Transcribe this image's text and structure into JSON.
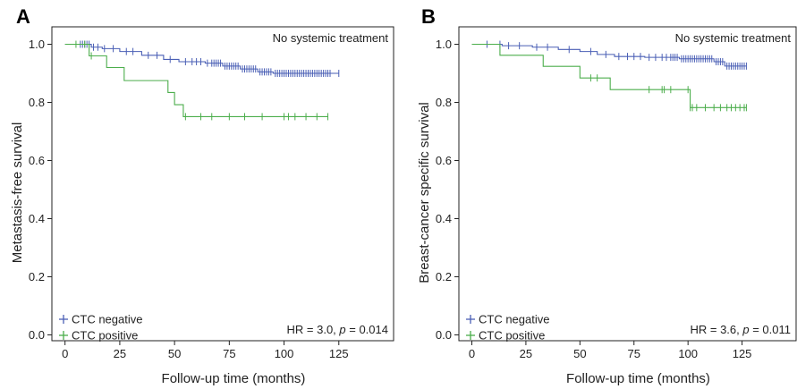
{
  "chart_data": [
    {
      "type": "line",
      "panel_letter": "A",
      "title": "No systemic treatment",
      "xlabel": "Follow-up time (months)",
      "ylabel": "Metastasis-free survival",
      "xlim": [
        -6,
        150
      ],
      "ylim": [
        -0.02,
        1.06
      ],
      "xticks": [
        0,
        25,
        50,
        75,
        100,
        125
      ],
      "yticks": [
        0.0,
        0.2,
        0.4,
        0.6,
        0.8,
        1.0
      ],
      "ytick_labels": [
        "0.0",
        "0.2",
        "0.4",
        "0.6",
        "0.8",
        "1.0"
      ],
      "annotation": {
        "hr_prefix": "HR = 3.0, ",
        "p_symbol": "p",
        "p_suffix": " = 0.014"
      },
      "legend_placement": "bottom-left",
      "grid": false,
      "series": [
        {
          "name": "CTC negative",
          "color": "#4a5fb5",
          "steps": [
            [
              0,
              1.0
            ],
            [
              12,
              0.99
            ],
            [
              17,
              0.985
            ],
            [
              25,
              0.975
            ],
            [
              35,
              0.962
            ],
            [
              45,
              0.948
            ],
            [
              52,
              0.94
            ],
            [
              64,
              0.935
            ],
            [
              72,
              0.925
            ],
            [
              80,
              0.915
            ],
            [
              88,
              0.905
            ],
            [
              95,
              0.9
            ],
            [
              125,
              0.9
            ]
          ],
          "censor_times": [
            7,
            8,
            9,
            10,
            11,
            13,
            15,
            18,
            22,
            28,
            31,
            38,
            42,
            48,
            55,
            58,
            60,
            62,
            65,
            67,
            68,
            69,
            70,
            71,
            73,
            74,
            75,
            76,
            77,
            78,
            79,
            81,
            82,
            83,
            84,
            85,
            86,
            87,
            89,
            90,
            91,
            92,
            93,
            94,
            96,
            97,
            98,
            99,
            100,
            101,
            102,
            103,
            104,
            105,
            106,
            107,
            108,
            109,
            110,
            111,
            112,
            113,
            114,
            115,
            116,
            117,
            118,
            119,
            120,
            121,
            125
          ]
        },
        {
          "name": "CTC positive",
          "color": "#4cae4c",
          "steps": [
            [
              0,
              1.0
            ],
            [
              11,
              0.96
            ],
            [
              19,
              0.92
            ],
            [
              27,
              0.875
            ],
            [
              47,
              0.834
            ],
            [
              50,
              0.792
            ],
            [
              54,
              0.751
            ],
            [
              120,
              0.751
            ]
          ],
          "censor_times": [
            5,
            9,
            12,
            55,
            62,
            67,
            75,
            82,
            90,
            100,
            102,
            105,
            110,
            115,
            120
          ]
        }
      ]
    },
    {
      "type": "line",
      "panel_letter": "B",
      "title": "No systemic treatment",
      "xlabel": "Follow-up time (months)",
      "ylabel": "Breast-cancer specific survival",
      "xlim": [
        -6,
        150
      ],
      "ylim": [
        -0.02,
        1.06
      ],
      "xticks": [
        0,
        25,
        50,
        75,
        100,
        125
      ],
      "yticks": [
        0.0,
        0.2,
        0.4,
        0.6,
        0.8,
        1.0
      ],
      "ytick_labels": [
        "0.0",
        "0.2",
        "0.4",
        "0.6",
        "0.8",
        "1.0"
      ],
      "annotation": {
        "hr_prefix": "HR = 3.6, ",
        "p_symbol": "p",
        "p_suffix": " = 0.011"
      },
      "legend_placement": "bottom-left",
      "grid": false,
      "series": [
        {
          "name": "CTC negative",
          "color": "#4a5fb5",
          "steps": [
            [
              0,
              1.0
            ],
            [
              14,
              0.995
            ],
            [
              28,
              0.99
            ],
            [
              40,
              0.982
            ],
            [
              50,
              0.975
            ],
            [
              58,
              0.965
            ],
            [
              66,
              0.958
            ],
            [
              80,
              0.955
            ],
            [
              96,
              0.95
            ],
            [
              112,
              0.94
            ],
            [
              117,
              0.925
            ],
            [
              127,
              0.925
            ]
          ],
          "censor_times": [
            7,
            13,
            17,
            22,
            30,
            35,
            45,
            55,
            62,
            68,
            72,
            75,
            78,
            82,
            85,
            88,
            90,
            92,
            93,
            94,
            95,
            97,
            98,
            99,
            100,
            101,
            102,
            103,
            104,
            105,
            106,
            107,
            108,
            109,
            110,
            111,
            113,
            114,
            115,
            116,
            118,
            119,
            120,
            121,
            122,
            123,
            124,
            125,
            126,
            127
          ]
        },
        {
          "name": "CTC positive",
          "color": "#4cae4c",
          "steps": [
            [
              0,
              1.0
            ],
            [
              13,
              0.962
            ],
            [
              33,
              0.924
            ],
            [
              50,
              0.884
            ],
            [
              64,
              0.844
            ],
            [
              101,
              0.782
            ],
            [
              127,
              0.782
            ]
          ],
          "censor_times": [
            55,
            58,
            82,
            88,
            89,
            92,
            100,
            101,
            102,
            104,
            108,
            112,
            115,
            118,
            120,
            122,
            124,
            126,
            127
          ]
        }
      ]
    }
  ]
}
